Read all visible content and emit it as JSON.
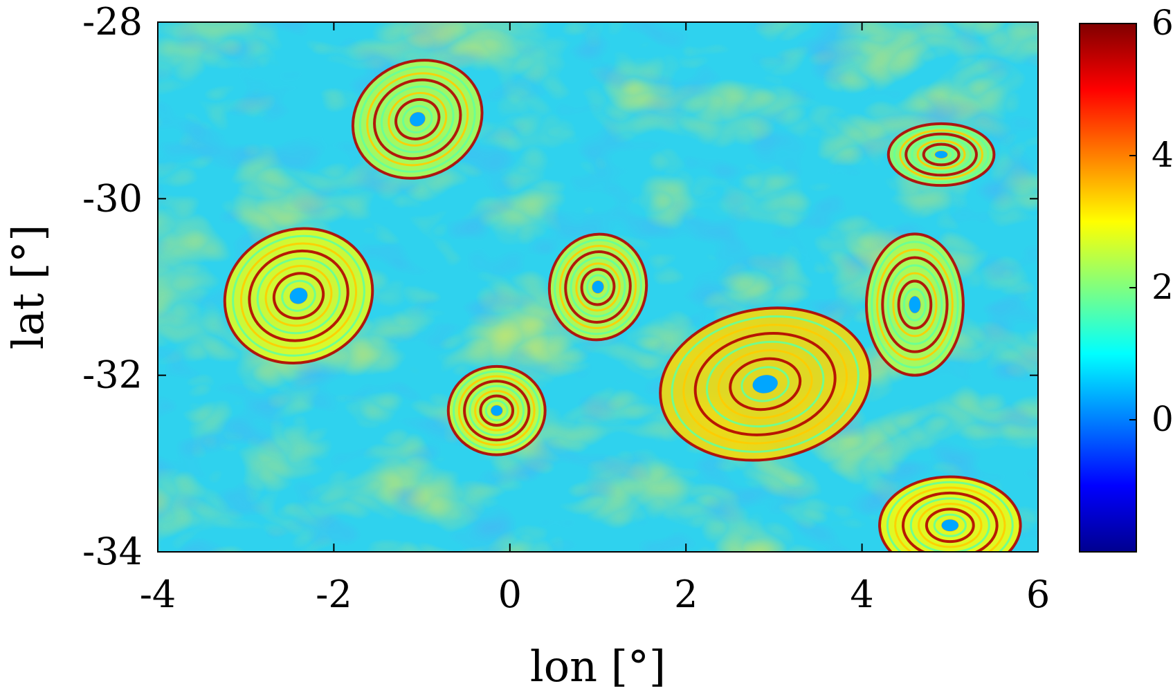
{
  "chart_data": {
    "type": "heatmap",
    "title": "",
    "xlabel": "lon [°]",
    "ylabel": "lat [°]",
    "xlim": [
      -4,
      6
    ],
    "ylim": [
      -34,
      -28
    ],
    "x_ticks": [
      "-4",
      "-2",
      "0",
      "2",
      "4",
      "6"
    ],
    "y_ticks": [
      "-34",
      "-32",
      "-30",
      "-28"
    ],
    "colorbar": {
      "colormap": "jet",
      "range": [
        -2,
        6
      ],
      "ticks": [
        "0",
        "2",
        "4",
        "6"
      ]
    },
    "grid": false,
    "features": [
      {
        "kind": "eddy",
        "lon": 2.9,
        "lat": -32.1,
        "rx": 1.2,
        "ry": 0.85,
        "angle": -10,
        "level": 3.3
      },
      {
        "kind": "eddy",
        "lon": -2.4,
        "lat": -31.1,
        "rx": 0.85,
        "ry": 0.75,
        "angle": -20,
        "level": 2.8
      },
      {
        "kind": "eddy",
        "lon": -1.05,
        "lat": -29.1,
        "rx": 0.75,
        "ry": 0.65,
        "angle": -25,
        "level": 2.4
      },
      {
        "kind": "eddy",
        "lon": -0.15,
        "lat": -32.4,
        "rx": 0.55,
        "ry": 0.5,
        "angle": 0,
        "level": 2.6
      },
      {
        "kind": "eddy",
        "lon": 1.0,
        "lat": -31.0,
        "rx": 0.55,
        "ry": 0.6,
        "angle": 10,
        "level": 2.5
      },
      {
        "kind": "eddy",
        "lon": 4.6,
        "lat": -31.2,
        "rx": 0.55,
        "ry": 0.8,
        "angle": 0,
        "level": 2.4
      },
      {
        "kind": "eddy",
        "lon": 5.0,
        "lat": -33.7,
        "rx": 0.8,
        "ry": 0.55,
        "angle": 0,
        "level": 3.0
      },
      {
        "kind": "eddy",
        "lon": 4.9,
        "lat": -29.5,
        "rx": 0.6,
        "ry": 0.35,
        "angle": 0,
        "level": 2.2
      }
    ]
  }
}
